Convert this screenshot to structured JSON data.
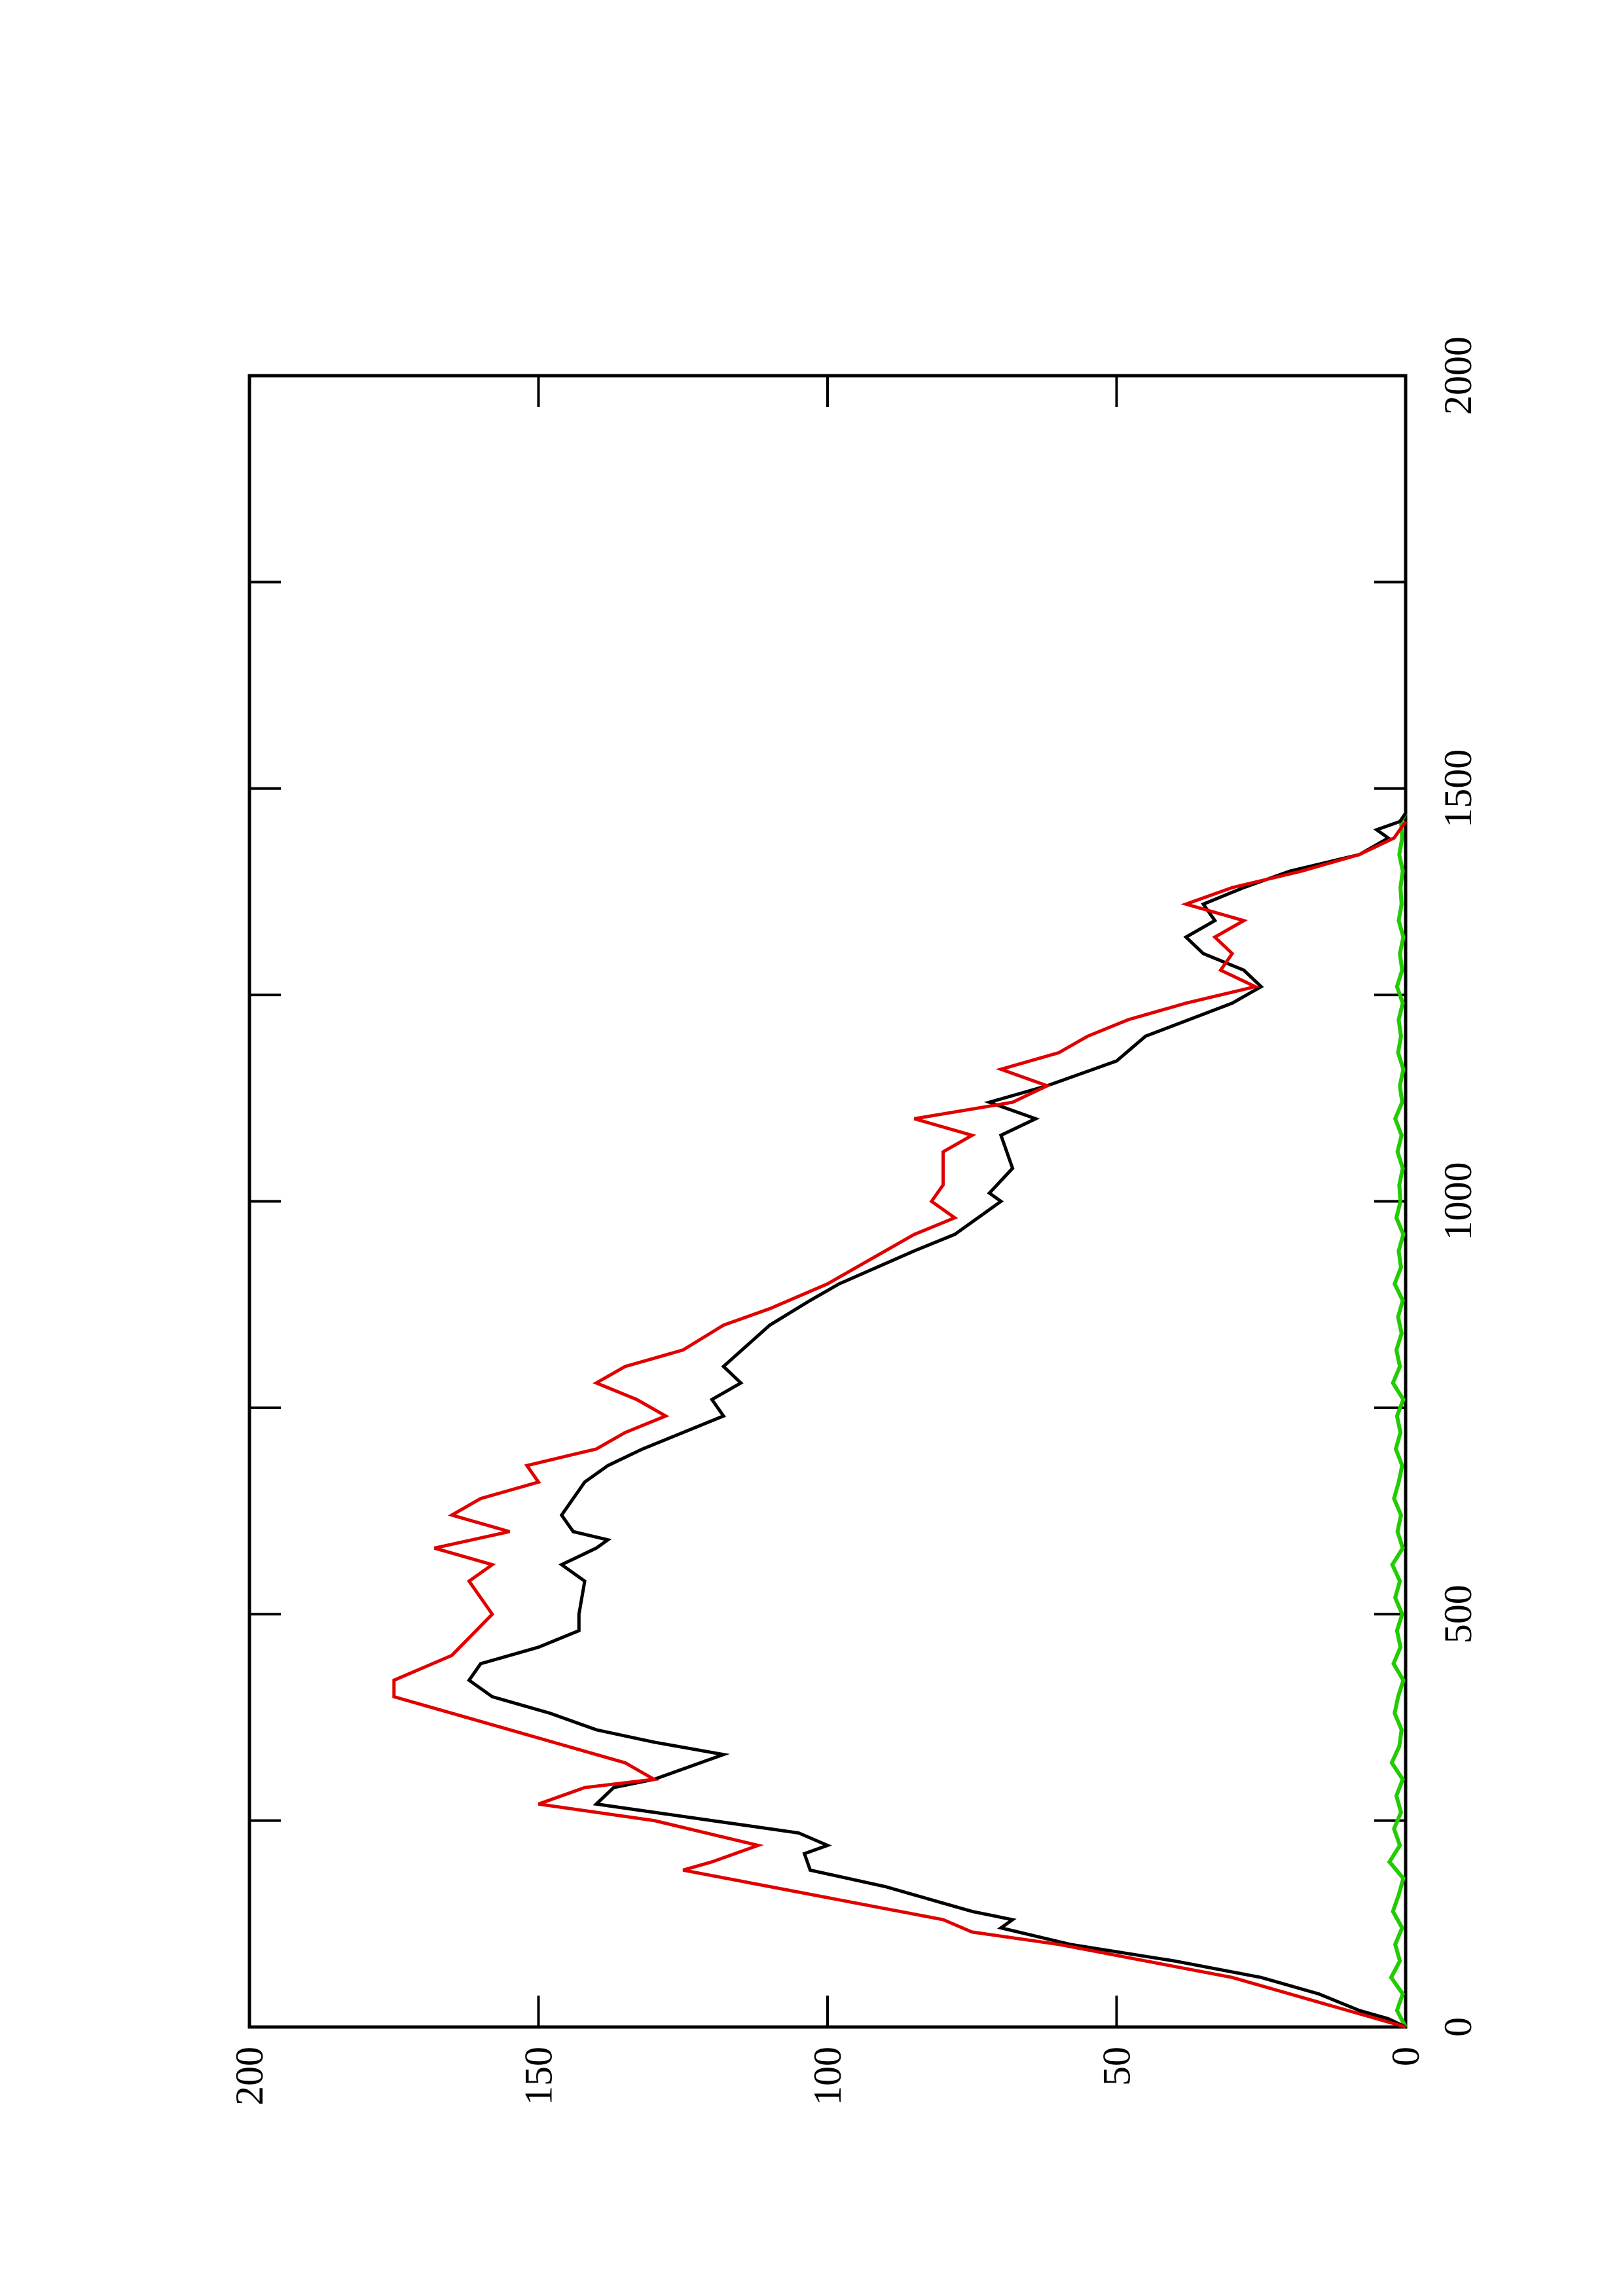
{
  "chart_data": {
    "type": "line",
    "orientation": "rotated-90-counterclockwise",
    "title": "",
    "xlabel": "",
    "ylabel": "",
    "xlim": [
      0,
      2000
    ],
    "ylim": [
      0,
      200
    ],
    "x_ticks": [
      0,
      500,
      1000,
      1500,
      2000
    ],
    "x_minor_ticks": [
      250,
      750,
      1250,
      1750
    ],
    "y_ticks": [
      0,
      50,
      100,
      150,
      200
    ],
    "x_tick_labels": [
      "0",
      "500",
      "1000",
      "1500",
      "2000"
    ],
    "y_tick_labels": [
      "0",
      "50",
      "100",
      "150",
      "200"
    ],
    "grid": false,
    "legend": "none",
    "series": [
      {
        "color": "#000000",
        "x": [
          0,
          10,
          20,
          40,
          60,
          80,
          100,
          120,
          130,
          140,
          150,
          170,
          190,
          210,
          220,
          235,
          250,
          270,
          290,
          300,
          330,
          345,
          360,
          380,
          400,
          420,
          440,
          460,
          480,
          500,
          540,
          560,
          580,
          590,
          600,
          620,
          660,
          680,
          700,
          740,
          760,
          780,
          800,
          850,
          880,
          900,
          940,
          960,
          1000,
          1010,
          1040,
          1080,
          1100,
          1120,
          1140,
          1170,
          1200,
          1240,
          1260,
          1280,
          1300,
          1320,
          1340,
          1360,
          1380,
          1400,
          1420,
          1440,
          1450,
          1460,
          1470
        ],
        "y": [
          0,
          3,
          8,
          15,
          25,
          40,
          58,
          70,
          68,
          75,
          80,
          90,
          103,
          104,
          100,
          105,
          120,
          140,
          137,
          130,
          118,
          130,
          140,
          148,
          158,
          162,
          160,
          150,
          143,
          143,
          142,
          146,
          140,
          138,
          144,
          146,
          142,
          138,
          132,
          118,
          120,
          115,
          118,
          110,
          103,
          98,
          85,
          78,
          70,
          72,
          68,
          70,
          64,
          72,
          62,
          50,
          45,
          30,
          25,
          28,
          35,
          38,
          33,
          35,
          28,
          20,
          8,
          3,
          5,
          1,
          0
        ]
      },
      {
        "color": "#e00000",
        "x": [
          0,
          10,
          30,
          60,
          80,
          100,
          115,
          130,
          150,
          170,
          190,
          200,
          220,
          250,
          270,
          290,
          300,
          320,
          340,
          370,
          400,
          420,
          450,
          500,
          540,
          560,
          580,
          600,
          620,
          640,
          660,
          680,
          700,
          720,
          740,
          760,
          780,
          800,
          820,
          850,
          870,
          900,
          940,
          960,
          980,
          1000,
          1020,
          1040,
          1060,
          1080,
          1100,
          1120,
          1140,
          1160,
          1180,
          1200,
          1220,
          1240,
          1260,
          1280,
          1300,
          1320,
          1340,
          1360,
          1380,
          1400,
          1420,
          1440,
          1460
        ],
        "y": [
          0,
          5,
          15,
          30,
          45,
          60,
          75,
          80,
          95,
          110,
          125,
          120,
          112,
          130,
          150,
          142,
          130,
          135,
          145,
          160,
          175,
          175,
          165,
          158,
          162,
          158,
          168,
          155,
          165,
          160,
          150,
          152,
          140,
          135,
          128,
          133,
          140,
          135,
          125,
          118,
          110,
          100,
          90,
          85,
          78,
          82,
          80,
          80,
          80,
          75,
          85,
          68,
          62,
          70,
          60,
          55,
          48,
          38,
          26,
          32,
          30,
          33,
          28,
          38,
          30,
          18,
          8,
          2,
          0
        ]
      },
      {
        "color": "#22cc00",
        "x": [
          0,
          20,
          40,
          60,
          80,
          100,
          120,
          140,
          160,
          180,
          200,
          220,
          240,
          260,
          280,
          300,
          320,
          340,
          360,
          380,
          400,
          420,
          440,
          460,
          480,
          500,
          520,
          540,
          560,
          580,
          600,
          620,
          640,
          660,
          680,
          700,
          720,
          740,
          760,
          780,
          800,
          820,
          840,
          860,
          880,
          900,
          920,
          940,
          960,
          980,
          1000,
          1020,
          1040,
          1060,
          1080,
          1100,
          1120,
          1140,
          1160,
          1180,
          1200,
          1220,
          1240,
          1260,
          1280,
          1300,
          1320,
          1340,
          1360,
          1380,
          1400,
          1420,
          1440,
          1460,
          1470
        ],
        "y": [
          0,
          1.5,
          0.5,
          2.5,
          1,
          1.8,
          0.6,
          2.2,
          1.2,
          0.4,
          2.8,
          1,
          2,
          0.8,
          1.6,
          0.5,
          2.4,
          1.1,
          0.7,
          1.9,
          1.3,
          0.4,
          2.1,
          0.9,
          1.5,
          0.6,
          1.8,
          1,
          2.3,
          0.5,
          1.4,
          0.8,
          2,
          1.2,
          0.6,
          1.7,
          0.9,
          1.5,
          0.4,
          2.2,
          1,
          1.6,
          0.7,
          1.3,
          0.5,
          1.9,
          0.8,
          1.2,
          0.4,
          1.6,
          0.9,
          1.1,
          0.5,
          1.4,
          0.7,
          1.8,
          0.6,
          1,
          0.4,
          1.3,
          0.8,
          1.2,
          0.5,
          1.5,
          0.6,
          1,
          0.4,
          1.2,
          0.7,
          0.9,
          0.5,
          1.1,
          0.6,
          0.8,
          0
        ]
      }
    ]
  }
}
